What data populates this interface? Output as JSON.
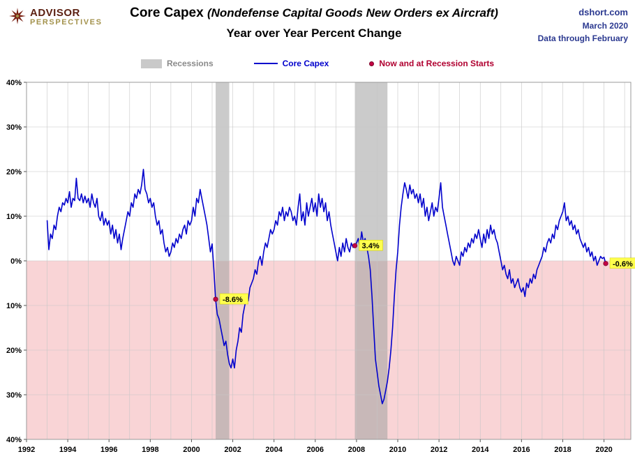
{
  "header": {
    "logo_line1": "ADVISOR",
    "logo_line2": "PERSPECTIVES",
    "title_main": "Core Capex",
    "title_italic": "(Nondefense Capital Goods New Orders ex Aircraft)",
    "subtitle": "Year over Year Percent Change",
    "source": "dshort.com",
    "source_date": "March 2020",
    "source_through": "Data through February"
  },
  "legend": {
    "recessions_label": "Recessions",
    "core_capex_label": "Core Capex",
    "now_label": "Now and at Recession Starts"
  },
  "colors": {
    "line": "#0000cc",
    "negative_fill": "#f9d4d6",
    "recession_fill": "#a0a0a0",
    "recession_opacity": "0.55",
    "gridline": "#c6c6c6",
    "plot_border": "#9a9a9a",
    "annotation_bg": "#ffff4d",
    "annotation_border": "#cccc00",
    "dot": "#c40045",
    "dot_stroke": "#7a0026",
    "header_blue": "#2b3990",
    "legend_red": "#b00030"
  },
  "chart_data": {
    "type": "line",
    "title": "Core Capex (Nondefense Capital Goods New Orders ex Aircraft) Year over Year Percent Change",
    "series_name": "Core Capex",
    "x_unit": "monthly",
    "x_start": 1993.0,
    "x_step": 0.0833333,
    "xlim": [
      1992,
      2021.3
    ],
    "ylim": [
      -40,
      40
    ],
    "y_tick_interval": 10,
    "y_tick_label_style": "absolute-percent",
    "x_ticks": [
      1992,
      1994,
      1996,
      1998,
      2000,
      2002,
      2004,
      2006,
      2008,
      2010,
      2012,
      2014,
      2016,
      2018,
      2020
    ],
    "grid": true,
    "recessions": [
      {
        "start": 2001.17,
        "end": 2001.83
      },
      {
        "start": 2007.92,
        "end": 2009.5
      }
    ],
    "annotations": [
      {
        "x": 2001.17,
        "y": -8.6,
        "label": "-8.6%"
      },
      {
        "x": 2007.92,
        "y": 3.4,
        "label": "3.4%"
      },
      {
        "x": 2020.083,
        "y": -0.6,
        "label": "-0.6%"
      }
    ],
    "values": [
      9,
      2.5,
      6,
      5,
      8,
      7,
      10,
      12,
      11,
      13,
      12.5,
      14,
      13,
      15.5,
      12,
      14,
      13.5,
      18.5,
      14,
      13.5,
      15,
      13,
      14.5,
      13,
      14,
      12,
      15,
      13,
      12,
      14,
      10,
      9,
      11,
      8,
      9.5,
      8,
      9,
      6,
      8,
      5,
      7,
      4,
      6,
      2.5,
      5,
      7,
      9,
      11,
      10,
      13,
      12,
      15,
      14,
      16,
      15,
      17,
      20.5,
      16,
      15,
      13,
      14,
      12,
      13,
      10,
      8,
      9,
      6,
      7,
      4,
      2,
      3,
      1,
      2,
      4,
      3,
      5,
      4,
      6,
      5,
      7,
      8,
      6,
      9,
      8,
      9,
      12,
      10,
      14,
      13,
      16,
      14,
      12,
      10,
      8,
      5,
      2,
      3.8,
      -2,
      -8.6,
      -12,
      -13,
      -15,
      -17,
      -19,
      -18,
      -21,
      -23,
      -24,
      -22,
      -24,
      -20,
      -18,
      -15,
      -16,
      -12,
      -10,
      -8,
      -9,
      -6,
      -5,
      -4,
      -2,
      -3,
      0,
      1,
      -1,
      2,
      4,
      3,
      5,
      7,
      6,
      7,
      9,
      8,
      11,
      10,
      12,
      9,
      11,
      10,
      12,
      11,
      9,
      10,
      8,
      12,
      15,
      9,
      11,
      8,
      13,
      10,
      12,
      14,
      11,
      13,
      10,
      15,
      12,
      14,
      11,
      13,
      9,
      11,
      8,
      6,
      4,
      2,
      0,
      3,
      1,
      4,
      2,
      5,
      3,
      2,
      4,
      3,
      3.4,
      4,
      5,
      3,
      6.5,
      4,
      5,
      3,
      1,
      -2,
      -8,
      -15,
      -22,
      -25,
      -28,
      -30,
      -32,
      -31,
      -29,
      -27,
      -24,
      -20,
      -15,
      -8,
      -2,
      2,
      8,
      12,
      15,
      17.5,
      16,
      14,
      17,
      15,
      16,
      14,
      15,
      13,
      15,
      12,
      14,
      10,
      12,
      9,
      11,
      13,
      10,
      12,
      11,
      14,
      17.5,
      12,
      10,
      8,
      6,
      4,
      2,
      0,
      -1,
      1,
      0,
      -1,
      2,
      1,
      3,
      2,
      4,
      3,
      5,
      4,
      6,
      5,
      7,
      5,
      3,
      6,
      4,
      7,
      5,
      8,
      6,
      7,
      5,
      4,
      2,
      0,
      -2,
      -1,
      -3,
      -4,
      -2,
      -5,
      -4,
      -6,
      -5,
      -4,
      -6,
      -7,
      -6,
      -8,
      -5,
      -6,
      -4,
      -5,
      -3,
      -4,
      -2,
      -1,
      0,
      1,
      3,
      2,
      4,
      5,
      4,
      6,
      5,
      8,
      7,
      9,
      10,
      11,
      13,
      9,
      10,
      8,
      9,
      7,
      8,
      6,
      7,
      5,
      4,
      3,
      4,
      2,
      3,
      1,
      2,
      0,
      1,
      -1,
      0,
      1,
      0.5,
      0.8,
      -0.6
    ]
  }
}
